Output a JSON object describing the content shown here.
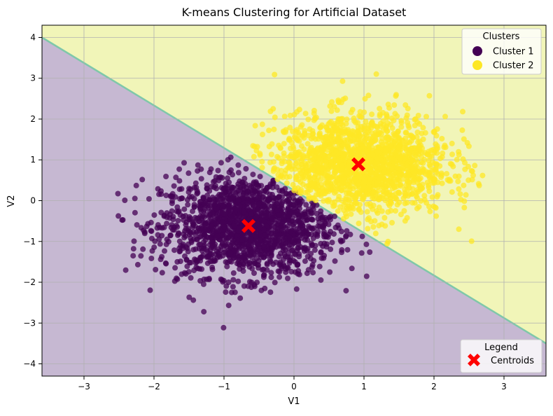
{
  "chart_data": {
    "type": "scatter",
    "title": "K-means Clustering for Artificial Dataset",
    "xlabel": "V1",
    "ylabel": "V2",
    "xlim": [
      -3.6,
      3.6
    ],
    "ylim": [
      -4.3,
      4.3
    ],
    "grid": true,
    "xticks": [
      -3,
      -2,
      -1,
      0,
      1,
      2,
      3
    ],
    "xtick_labels": [
      "−3",
      "−2",
      "−1",
      "0",
      "1",
      "2",
      "3"
    ],
    "yticks": [
      -4,
      -3,
      -2,
      -1,
      0,
      1,
      2,
      3,
      4
    ],
    "ytick_labels": [
      "−4",
      "−3",
      "−2",
      "−1",
      "0",
      "1",
      "2",
      "3",
      "4"
    ],
    "decision_boundary": {
      "from": [
        -3.6,
        4.0
      ],
      "to": [
        3.6,
        -3.5
      ]
    },
    "regions": [
      {
        "name": "Cluster 1 region",
        "color": "#c6b8d2"
      },
      {
        "name": "Cluster 2 region",
        "color": "#f1f5b8"
      }
    ],
    "series": [
      {
        "name": "Cluster 1",
        "color": "#440154",
        "center": [
          -0.65,
          -0.62
        ],
        "spread": [
          0.62,
          0.62
        ],
        "x_range": [
          -2.6,
          1.35
        ],
        "y_range": [
          -3.3,
          1.5
        ]
      },
      {
        "name": "Cluster 2",
        "color": "#fde725",
        "center": [
          0.95,
          0.88
        ],
        "spread": [
          0.62,
          0.62
        ],
        "x_range": [
          -0.8,
          2.7
        ],
        "y_range": [
          -1.1,
          3.3
        ]
      }
    ],
    "centroids": [
      {
        "label": "Centroid 1",
        "x": -0.65,
        "y": -0.62
      },
      {
        "label": "Centroid 2",
        "x": 0.92,
        "y": 0.89
      }
    ],
    "centroid_color": "#ff0000",
    "legend_clusters": {
      "title": "Clusters",
      "placement": "top-right",
      "items": [
        {
          "label": "Cluster 1",
          "color": "#440154"
        },
        {
          "label": "Cluster 2",
          "color": "#fde725"
        }
      ]
    },
    "legend_centroids": {
      "title": "Legend",
      "placement": "bottom-right",
      "items": [
        {
          "label": "Centroids",
          "color": "#ff0000"
        }
      ]
    }
  }
}
